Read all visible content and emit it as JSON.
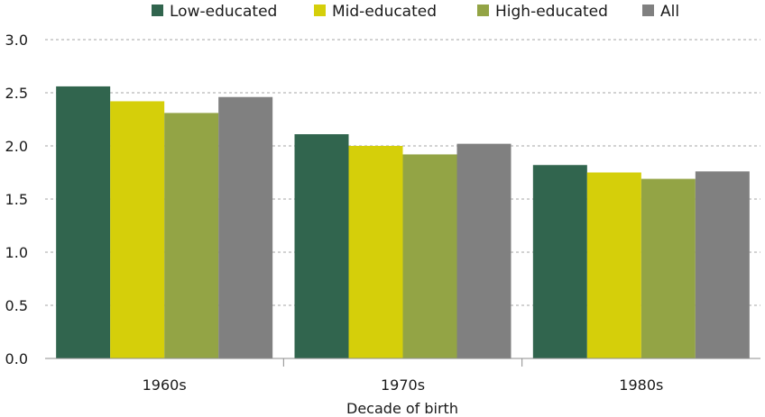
{
  "chart_data": {
    "type": "bar",
    "title": "",
    "xlabel": "Decade of birth",
    "ylabel": "",
    "categories": [
      "1960s",
      "1970s",
      "1980s"
    ],
    "series": [
      {
        "name": "Low-educated",
        "color": "#31654e",
        "values": [
          2.56,
          2.11,
          1.82
        ]
      },
      {
        "name": "Mid-educated",
        "color": "#d5cf0a",
        "values": [
          2.42,
          2.0,
          1.75
        ]
      },
      {
        "name": "High-educated",
        "color": "#93a445",
        "values": [
          2.31,
          1.92,
          1.69
        ]
      },
      {
        "name": "All",
        "color": "#808080",
        "values": [
          2.46,
          2.02,
          1.76
        ]
      }
    ],
    "ylim": [
      0,
      3.0
    ],
    "yticks": [
      "0.0",
      "0.5",
      "1.0",
      "1.5",
      "2.0",
      "2.5",
      "3.0"
    ],
    "ytick_values": [
      0,
      0.5,
      1.0,
      1.5,
      2.0,
      2.5,
      3.0
    ],
    "grid": true,
    "legend_position": "top"
  }
}
